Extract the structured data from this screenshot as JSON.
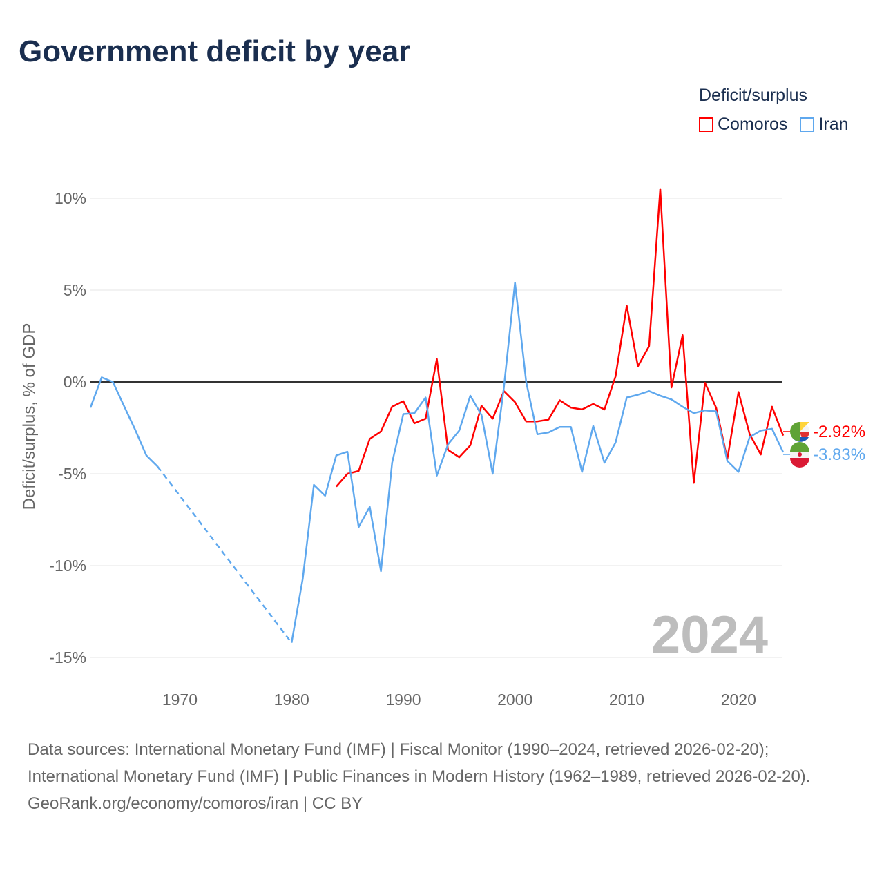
{
  "title": "Government deficit by year",
  "legend": {
    "title": "Deficit/surplus",
    "items": [
      {
        "label": "Comoros",
        "color": "#ff0000"
      },
      {
        "label": "Iran",
        "color": "#5fa8ee"
      }
    ]
  },
  "footer": {
    "sources": "Data sources: International Monetary Fund (IMF) | Fiscal Monitor (1990–2024, retrieved 2026-02-20); International Monetary Fund (IMF) | Public Finances in Modern History (1962–1989, retrieved 2026-02-20).",
    "credit": "GeoRank.org/economy/comoros/iran | CC BY"
  },
  "chart_data": {
    "type": "line",
    "title": "Government deficit by year",
    "ylabel": "Deficit/surplus, % of GDP",
    "xlabel": "",
    "xlim": [
      1962,
      2024
    ],
    "ylim": [
      -16,
      11
    ],
    "x_ticks": [
      1970,
      1980,
      1990,
      2000,
      2010,
      2020
    ],
    "y_ticks": [
      10,
      5,
      0,
      -5,
      -10,
      -15
    ],
    "y_tick_labels": [
      "10%",
      "5%",
      "0%",
      "-5%",
      "-10%",
      "-15%"
    ],
    "year_watermark": "2024",
    "series": [
      {
        "name": "Comoros",
        "color": "#ff0000",
        "end_label": "-2.92%",
        "x": [
          1984,
          1985,
          1986,
          1987,
          1988,
          1989,
          1990,
          1991,
          1992,
          1993,
          1994,
          1995,
          1996,
          1997,
          1998,
          1999,
          2000,
          2001,
          2002,
          2003,
          2004,
          2005,
          2006,
          2007,
          2008,
          2009,
          2010,
          2011,
          2012,
          2013,
          2014,
          2015,
          2016,
          2017,
          2018,
          2019,
          2020,
          2021,
          2022,
          2023,
          2024
        ],
        "values": [
          -5.7,
          -5.0,
          -4.85,
          -3.1,
          -2.7,
          -1.35,
          -1.05,
          -2.25,
          -2.0,
          1.25,
          -3.7,
          -4.1,
          -3.45,
          -1.3,
          -2.0,
          -0.5,
          -1.1,
          -2.15,
          -2.15,
          -2.05,
          -1.0,
          -1.4,
          -1.5,
          -1.2,
          -1.5,
          0.3,
          4.15,
          0.85,
          1.95,
          10.5,
          -0.3,
          2.55,
          -5.5,
          -0.05,
          -1.4,
          -4.2,
          -0.55,
          -2.85,
          -3.95,
          -1.35,
          -2.92
        ]
      },
      {
        "name": "Iran",
        "color": "#5fa8ee",
        "end_label": "-3.83%",
        "x": [
          1962,
          1963,
          1964,
          1965,
          1966,
          1967,
          1968,
          1980,
          1981,
          1982,
          1983,
          1984,
          1985,
          1986,
          1987,
          1988,
          1989,
          1990,
          1991,
          1992,
          1993,
          1994,
          1995,
          1996,
          1997,
          1998,
          1999,
          2000,
          2001,
          2002,
          2003,
          2004,
          2005,
          2006,
          2007,
          2008,
          2009,
          2010,
          2011,
          2012,
          2013,
          2014,
          2015,
          2016,
          2017,
          2018,
          2019,
          2020,
          2021,
          2022,
          2023,
          2024
        ],
        "values": [
          -1.4,
          0.25,
          0,
          -1.3,
          -2.6,
          -4.0,
          -4.6,
          -14.2,
          -10.7,
          -5.6,
          -6.2,
          -4.0,
          -3.8,
          -7.9,
          -6.8,
          -10.3,
          -4.4,
          -1.75,
          -1.7,
          -0.85,
          -5.1,
          -3.4,
          -2.65,
          -0.75,
          -1.8,
          -5.0,
          -0.3,
          5.4,
          0,
          -2.85,
          -2.75,
          -2.45,
          -2.45,
          -4.9,
          -2.4,
          -4.4,
          -3.3,
          -0.85,
          -0.7,
          -0.5,
          -0.75,
          -0.95,
          -1.35,
          -1.7,
          -1.55,
          -1.6,
          -4.3,
          -4.9,
          -3.0,
          -2.65,
          -2.55,
          -3.83
        ]
      }
    ]
  }
}
